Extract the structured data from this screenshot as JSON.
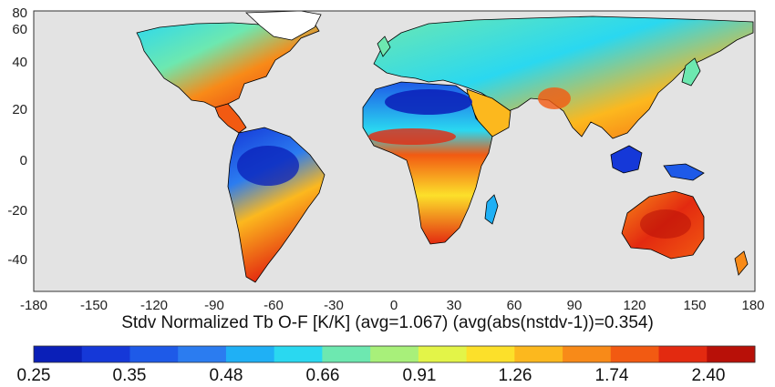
{
  "map": {
    "x_ticks": [
      "-180",
      "-150",
      "-120",
      "-90",
      "-60",
      "-30",
      "0",
      "30",
      "60",
      "90",
      "120",
      "150",
      "180"
    ],
    "y_ticks": [
      "80",
      "60",
      "40",
      "20",
      "0",
      "-20",
      "-40"
    ],
    "ocean_color": "#e3e3e3",
    "land_outline_color": "#000000"
  },
  "caption": "Stdv Normalized Tb O-F [K/K]  (avg=1.067) (avg(abs(nstdv-1))=0.354)",
  "colorbar": {
    "colors": [
      "#0a1fb8",
      "#1538d8",
      "#1e5ae8",
      "#2b7cf0",
      "#1fb0f5",
      "#2ad8f0",
      "#6de8b0",
      "#a8f07a",
      "#e3f448",
      "#fce02a",
      "#fcb81e",
      "#f88a18",
      "#f25a12",
      "#e32a10",
      "#b81008"
    ],
    "labels": [
      "0.25",
      "0.35",
      "0.48",
      "0.66",
      "0.91",
      "1.26",
      "1.74",
      "2.40"
    ]
  }
}
